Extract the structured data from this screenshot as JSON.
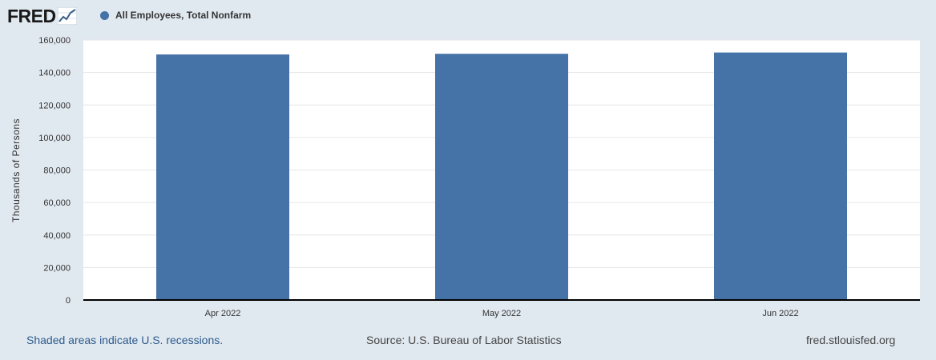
{
  "header": {
    "logo_text": "FRED",
    "logo_icon": "chart-trend-icon",
    "legend_color": "#4572a7"
  },
  "chart_data": {
    "type": "bar",
    "categories": [
      "Apr 2022",
      "May 2022",
      "Jun 2022"
    ],
    "series": [
      {
        "name": "All Employees, Total Nonfarm",
        "values": [
          151100,
          151500,
          152300
        ],
        "color": "#4572a7"
      }
    ],
    "title": "",
    "xlabel": "",
    "ylabel": "Thousands of Persons",
    "ylim": [
      0,
      160000
    ],
    "yticks": [
      0,
      20000,
      40000,
      60000,
      80000,
      100000,
      120000,
      140000,
      160000
    ],
    "ytick_labels": [
      "0",
      "20,000",
      "40,000",
      "60,000",
      "80,000",
      "100,000",
      "120,000",
      "140,000",
      "160,000"
    ],
    "grid": true,
    "legend_position": "top-left"
  },
  "footer": {
    "recession_note": "Shaded areas indicate U.S. recessions.",
    "source": "Source: U.S. Bureau of Labor Statistics",
    "site": "fred.stlouisfed.org"
  }
}
